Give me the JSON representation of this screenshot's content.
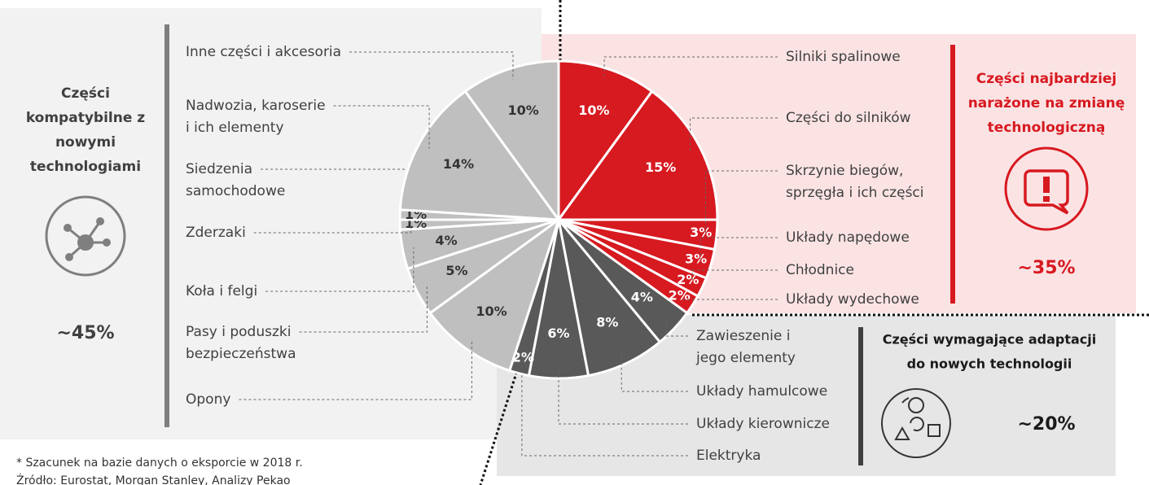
{
  "chart_data": {
    "type": "pie",
    "categories": [
      [
        "Silniki spalinowe"
      ],
      [
        "Części do silników"
      ],
      [
        "Skrzynie biegów,",
        "sprzęgła i ich części"
      ],
      [
        "Układy napędowe"
      ],
      [
        "Chłodnice"
      ],
      [
        "Układy wydechowe"
      ],
      [
        "Zawieszenie i",
        "jego elementy"
      ],
      [
        "Układy hamulcowe"
      ],
      [
        "Układy kierownicze"
      ],
      [
        "Elektryka"
      ],
      [
        "Opony"
      ],
      [
        "Pasy i poduszki",
        "bezpieczeństwa"
      ],
      [
        "Koła i felgi"
      ],
      [
        "Zderzaki"
      ],
      [
        "Siedzenia",
        "samochodowe"
      ],
      [
        "Nadwozia, karoserie",
        "i ich elementy"
      ],
      [
        "Inne części i akcesoria"
      ]
    ],
    "values": [
      10,
      15,
      3,
      3,
      2,
      2,
      4,
      8,
      6,
      2,
      10,
      5,
      4,
      1,
      1,
      14,
      10
    ],
    "value_labels": [
      "10%",
      "15%",
      "3%",
      "3%",
      "2%",
      "2%",
      "4%",
      "8%",
      "6%",
      "2%",
      "10%",
      "5%",
      "4%",
      "1%",
      "1%",
      "14%",
      "10%"
    ],
    "colors": [
      "#d71920",
      "#d71920",
      "#d71920",
      "#d71920",
      "#d71920",
      "#d71920",
      "#595959",
      "#595959",
      "#595959",
      "#595959",
      "#bfbfbf",
      "#bfbfbf",
      "#bfbfbf",
      "#bfbfbf",
      "#bfbfbf",
      "#bfbfbf",
      "#bfbfbf"
    ],
    "groups": [
      {
        "title": [
          "Części",
          "kompatybilne z",
          "nowymi",
          "technologiami"
        ],
        "share": "~45%"
      },
      {
        "title": [
          "Części najbardziej",
          "narażone na zmianę",
          "technologiczną"
        ],
        "share": "~35%"
      },
      {
        "title": [
          "Części wymagające adaptacji",
          "do nowych technologii"
        ],
        "share": "~20%"
      }
    ],
    "notes": [
      "* Szacunek na bazie danych o eksporcie w 2018 r.",
      "Źródło: Eurostat, Morgan Stanley, Analizy Pekao"
    ]
  }
}
